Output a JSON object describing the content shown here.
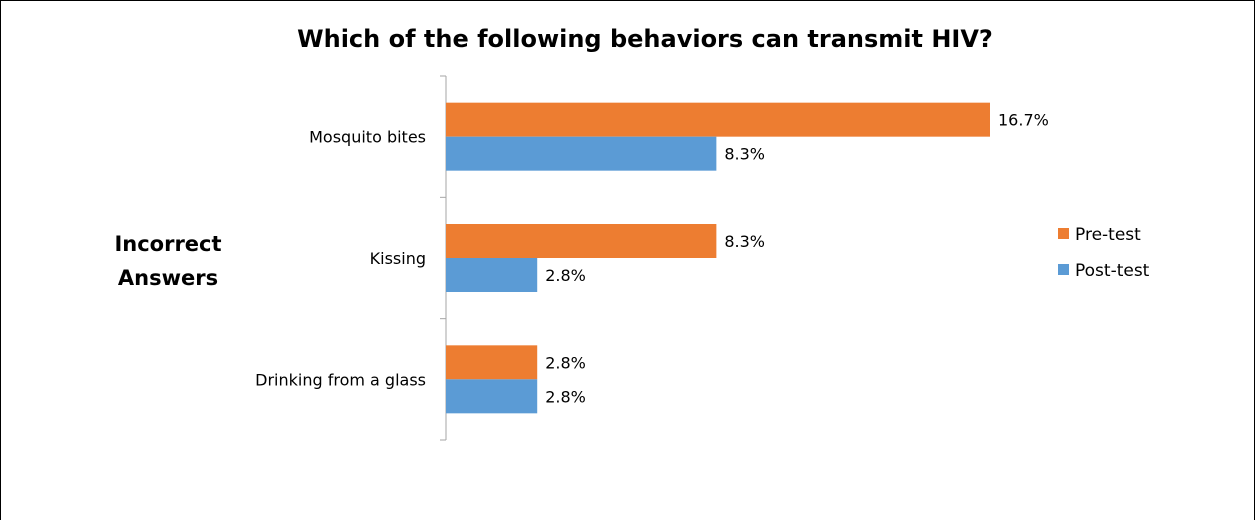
{
  "chart_data": {
    "type": "bar",
    "orientation": "horizontal",
    "title": "Which of the following behaviors can transmit HIV?",
    "ylabel": "Incorrect Answers",
    "xlabel": "",
    "categories": [
      "Mosquito bites",
      "Kissing",
      "Drinking from a glass"
    ],
    "series": [
      {
        "name": "Pre-test",
        "color": "#ED7D31",
        "values": [
          16.7,
          8.3,
          2.8
        ],
        "labels": [
          "16.7%",
          "8.3%",
          "2.8%"
        ]
      },
      {
        "name": "Post-test",
        "color": "#5B9BD5",
        "values": [
          8.3,
          2.8,
          2.8
        ],
        "labels": [
          "8.3%",
          "2.8%",
          "2.8%"
        ]
      }
    ],
    "xlim": [
      0,
      16.7
    ],
    "grid": false,
    "legend_position": "right"
  }
}
